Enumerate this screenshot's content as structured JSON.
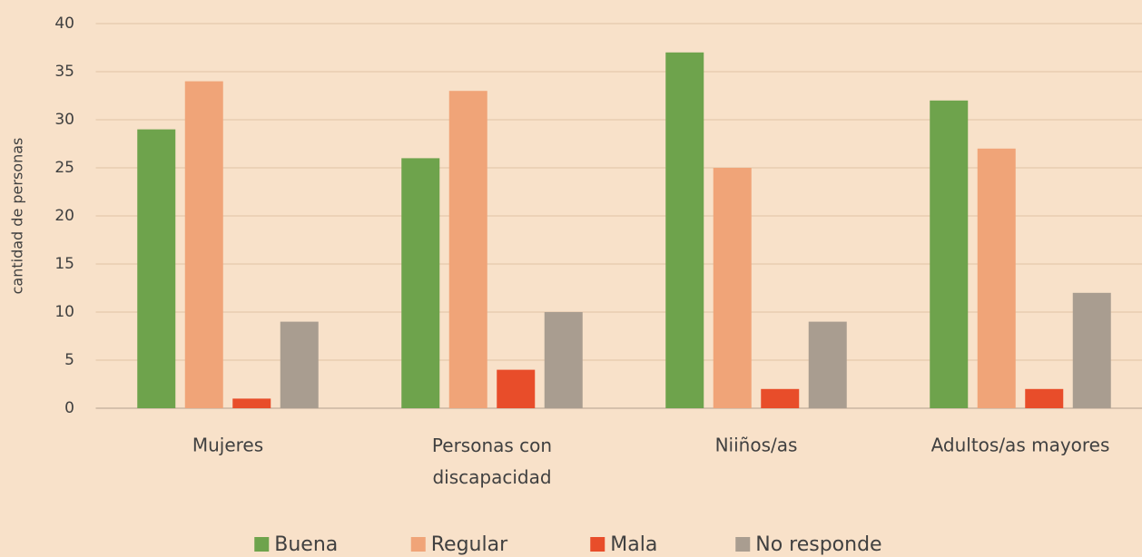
{
  "chart_data": {
    "type": "bar",
    "y_label": "cantidad de personas",
    "categories": [
      "Mujeres",
      "Personas con discapacidad",
      "Niiños/as",
      "Adultos/as mayores"
    ],
    "series": [
      {
        "name": "Buena",
        "color": "#6ea34c",
        "values": [
          29,
          26,
          37,
          32
        ]
      },
      {
        "name": "Regular",
        "color": "#f0a478",
        "values": [
          34,
          33,
          25,
          27
        ]
      },
      {
        "name": "Mala",
        "color": "#e84d2a",
        "values": [
          1,
          4,
          2,
          2
        ]
      },
      {
        "name": "No responde",
        "color": "#a99d90",
        "values": [
          9,
          10,
          9,
          12
        ]
      }
    ],
    "ylim": [
      0,
      40
    ],
    "yticks": [
      0,
      5,
      10,
      15,
      20,
      25,
      30,
      35,
      40
    ],
    "grid": true,
    "legend": "bottom"
  }
}
